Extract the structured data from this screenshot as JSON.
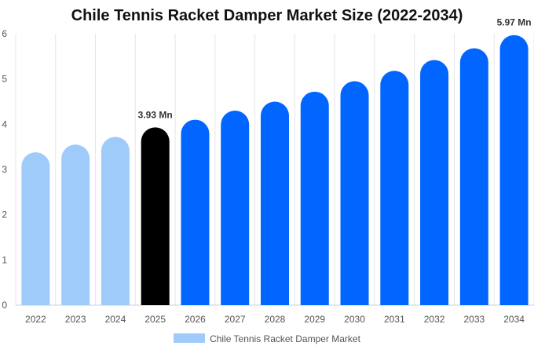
{
  "chart_data": {
    "type": "bar",
    "title": "Chile Tennis Racket Damper Market Size (2022-2034)",
    "categories": [
      "2022",
      "2023",
      "2024",
      "2025",
      "2026",
      "2027",
      "2028",
      "2029",
      "2030",
      "2031",
      "2032",
      "2033",
      "2034"
    ],
    "series": [
      {
        "name": "Chile Tennis Racket Damper Market",
        "values": [
          3.38,
          3.55,
          3.72,
          3.93,
          4.1,
          4.3,
          4.5,
          4.72,
          4.95,
          5.18,
          5.42,
          5.68,
          5.97
        ]
      }
    ],
    "data_labels": [
      {
        "category": "2025",
        "text": "3.93 Mn"
      },
      {
        "category": "2034",
        "text": "5.97 Mn"
      }
    ],
    "bar_colors": [
      "#9fcbfa",
      "#9fcbfa",
      "#9fcbfa",
      "#000000",
      "#0066ff",
      "#0066ff",
      "#0066ff",
      "#0066ff",
      "#0066ff",
      "#0066ff",
      "#0066ff",
      "#0066ff",
      "#0066ff"
    ],
    "legend_color": "#9fcbfa",
    "ylim": [
      0,
      6
    ],
    "yticks": [
      0,
      1,
      2,
      3,
      4,
      5,
      6
    ],
    "grid": "vertical",
    "legend_position": "bottom"
  }
}
